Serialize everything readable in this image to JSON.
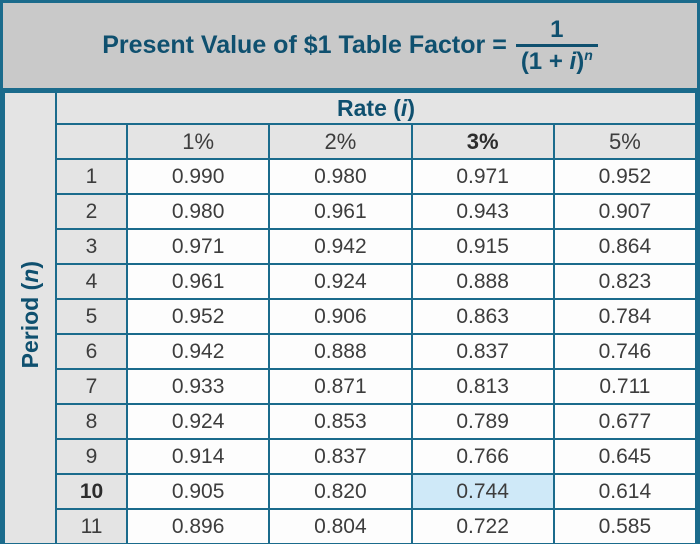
{
  "title": {
    "prefix": "Present Value of $1 Table Factor =",
    "fraction": {
      "numerator": "1",
      "denominator_pre": "(1 + ",
      "denominator_var": "i",
      "denominator_post": ")",
      "exponent": "n"
    }
  },
  "rate_header": {
    "pre": "Rate (",
    "var": "i",
    "post": ")"
  },
  "period_header": {
    "pre": "Period (",
    "var": "n",
    "post": ")"
  },
  "columns": [
    "1%",
    "2%",
    "3%",
    "5%"
  ],
  "emphasized_column_index": 2,
  "rows": [
    {
      "period": "1",
      "values": [
        "0.990",
        "0.980",
        "0.971",
        "0.952"
      ]
    },
    {
      "period": "2",
      "values": [
        "0.980",
        "0.961",
        "0.943",
        "0.907"
      ]
    },
    {
      "period": "3",
      "values": [
        "0.971",
        "0.942",
        "0.915",
        "0.864"
      ]
    },
    {
      "period": "4",
      "values": [
        "0.961",
        "0.924",
        "0.888",
        "0.823"
      ]
    },
    {
      "period": "5",
      "values": [
        "0.952",
        "0.906",
        "0.863",
        "0.784"
      ]
    },
    {
      "period": "6",
      "values": [
        "0.942",
        "0.888",
        "0.837",
        "0.746"
      ]
    },
    {
      "period": "7",
      "values": [
        "0.933",
        "0.871",
        "0.813",
        "0.711"
      ]
    },
    {
      "period": "8",
      "values": [
        "0.924",
        "0.853",
        "0.789",
        "0.677"
      ]
    },
    {
      "period": "9",
      "values": [
        "0.914",
        "0.837",
        "0.766",
        "0.645"
      ]
    },
    {
      "period": "10",
      "values": [
        "0.905",
        "0.820",
        "0.744",
        "0.614"
      ],
      "bold_period": true
    },
    {
      "period": "11",
      "values": [
        "0.896",
        "0.804",
        "0.722",
        "0.585"
      ]
    }
  ],
  "highlight": {
    "row_index": 9,
    "col_index": 2,
    "color": "#cfe9f8"
  },
  "colors": {
    "border_teal": "#1b6b8c",
    "heading_teal": "#0f506f",
    "title_band_bg": "#c9c9c9",
    "header_cell_bg": "#e4e4e4",
    "highlight_blue": "#cfe9f8",
    "data_text": "#3d3d3d"
  }
}
